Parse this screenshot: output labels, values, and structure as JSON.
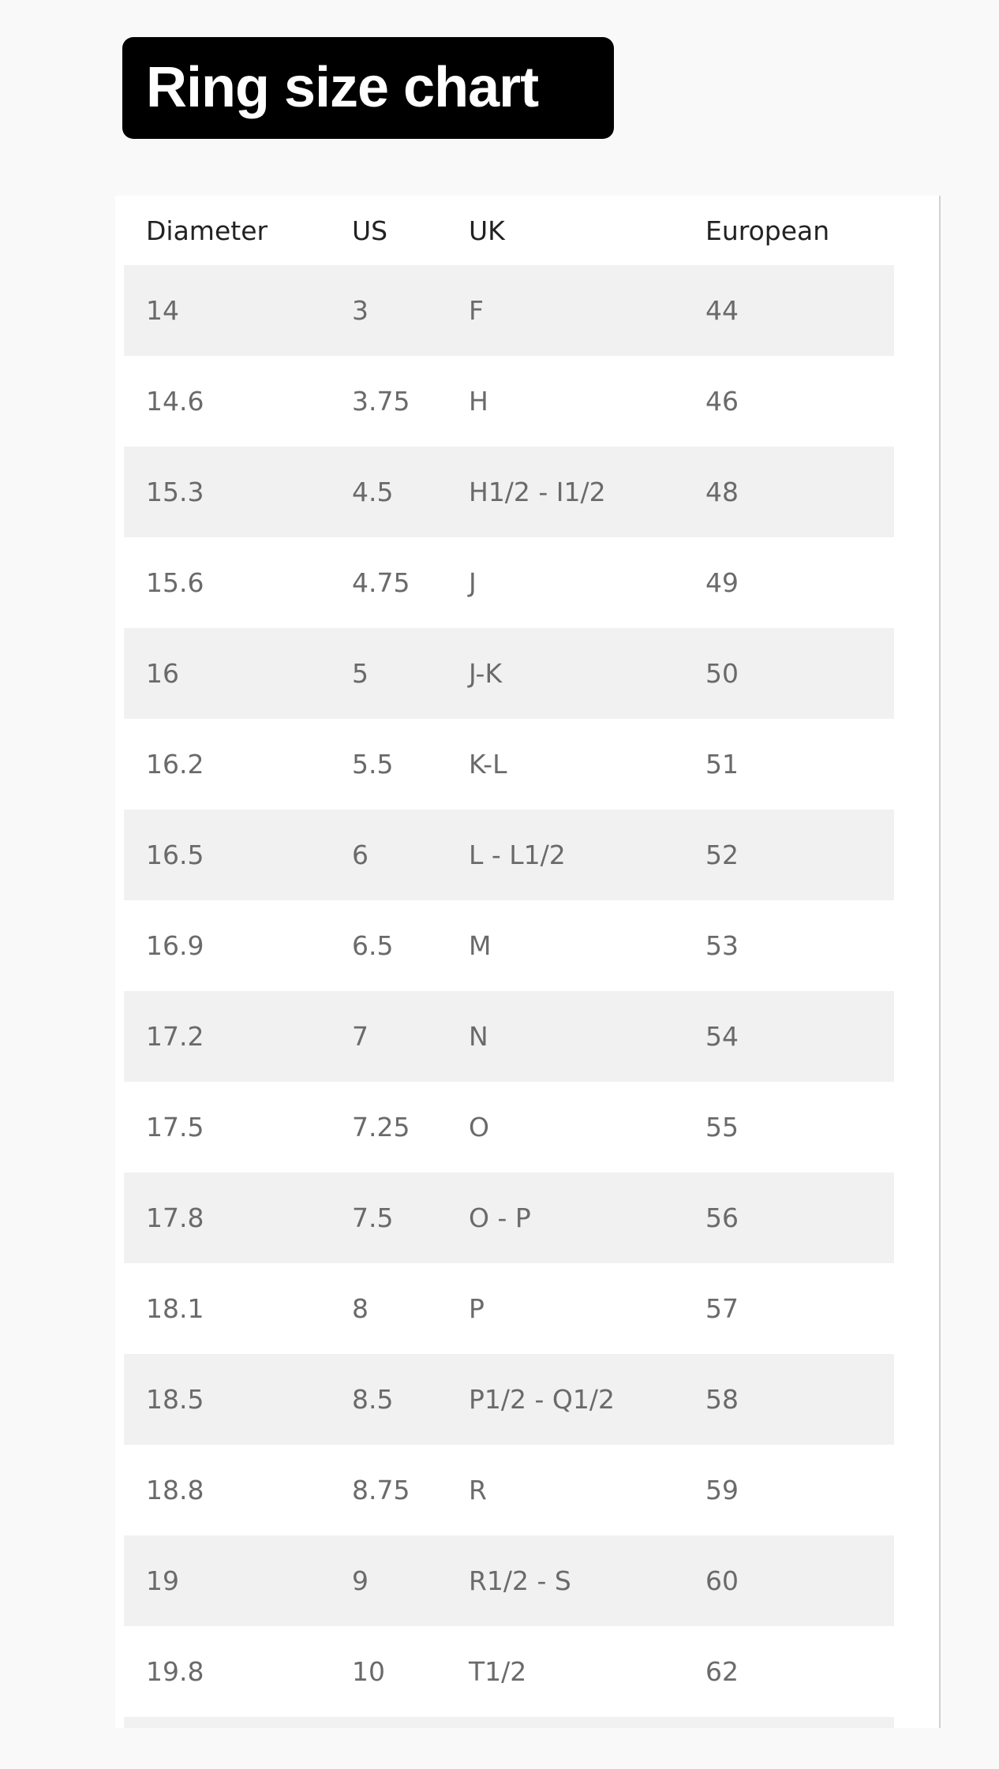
{
  "title": "Ring size chart",
  "table": {
    "headers": [
      "Diameter",
      "US",
      "UK",
      "European"
    ],
    "rows": [
      [
        "14",
        "3",
        "F",
        "44"
      ],
      [
        "14.6",
        "3.75",
        "H",
        "46"
      ],
      [
        "15.3",
        "4.5",
        "H1/2 - I1/2",
        "48"
      ],
      [
        "15.6",
        "4.75",
        "J",
        "49"
      ],
      [
        "16",
        "5",
        "J-K",
        "50"
      ],
      [
        "16.2",
        "5.5",
        "K-L",
        "51"
      ],
      [
        "16.5",
        "6",
        "L - L1/2",
        "52"
      ],
      [
        "16.9",
        "6.5",
        "M",
        "53"
      ],
      [
        "17.2",
        "7",
        "N",
        "54"
      ],
      [
        "17.5",
        "7.25",
        "O",
        "55"
      ],
      [
        "17.8",
        "7.5",
        "O - P",
        "56"
      ],
      [
        "18.1",
        "8",
        "P",
        "57"
      ],
      [
        "18.5",
        "8.5",
        "P1/2 - Q1/2",
        "58"
      ],
      [
        "18.8",
        "8.75",
        "R",
        "59"
      ],
      [
        "19",
        "9",
        "R1/2 - S",
        "60"
      ],
      [
        "19.8",
        "10",
        "T1/2",
        "62"
      ]
    ]
  },
  "colors": {
    "title_bg": "#000000",
    "stripe": "#f1f1f1",
    "cell_text": "#6a6a6a",
    "header_text": "#222222"
  }
}
